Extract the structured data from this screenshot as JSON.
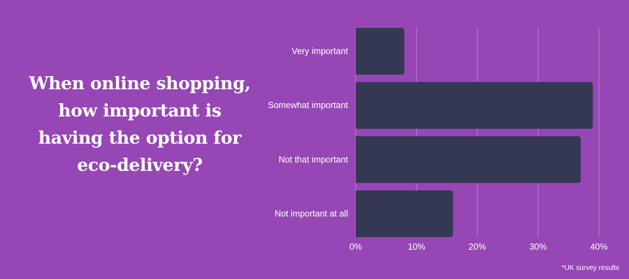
{
  "chart_data": {
    "type": "bar",
    "orientation": "horizontal",
    "title": "When online shopping, how important is having the option for eco-delivery?",
    "categories": [
      "Very important",
      "Somewhat important",
      "Not that important",
      "Not important at all"
    ],
    "values": [
      8,
      39,
      37,
      16
    ],
    "xlim": [
      0,
      40
    ],
    "xticks": [
      "0%",
      "10%",
      "20%",
      "30%",
      "40%"
    ],
    "xtick_values": [
      0,
      10,
      20,
      30,
      40
    ],
    "grid": true,
    "footnote": "*UK survey results",
    "colors": {
      "background": "#9646b5",
      "bar": "#343852",
      "text": "#ffffff",
      "grid": "#b583cc"
    }
  }
}
